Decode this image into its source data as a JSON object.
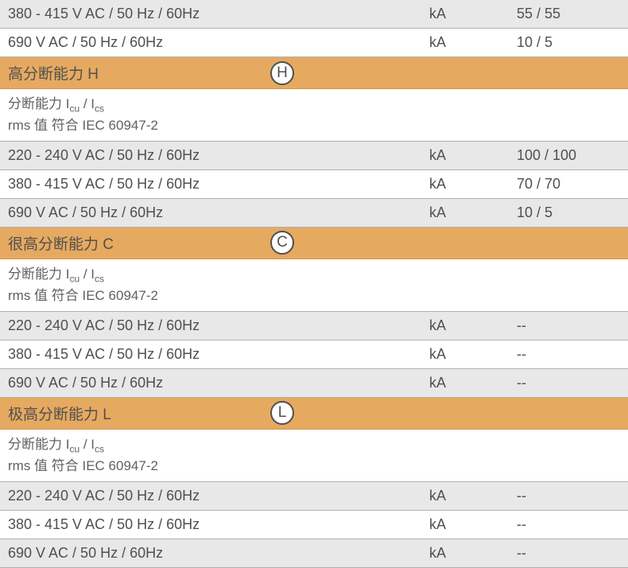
{
  "colors": {
    "header_bg": "#e6a960",
    "gray_bg": "#e8e8e8",
    "text": "#505050",
    "border": "#b0b0b0"
  },
  "rows": [
    {
      "type": "data",
      "gray": true,
      "c1": "380 - 415 V AC / 50 Hz / 60Hz",
      "c2": "kA",
      "c3": "55 / 55"
    },
    {
      "type": "data",
      "gray": false,
      "c1": "690 V AC / 50 Hz / 60Hz",
      "c2": "kA",
      "c3": "10 / 5"
    },
    {
      "type": "header",
      "title": "高分断能力 H",
      "badge": "H"
    },
    {
      "type": "subheader",
      "line1_pre": "分断能力 I",
      "line1_sub1": "cu",
      "line1_mid": " / I",
      "line1_sub2": "cs",
      "line2": "rms 值 符合 IEC 60947-2"
    },
    {
      "type": "data",
      "gray": true,
      "c1": "220 - 240 V AC / 50 Hz / 60Hz",
      "c2": "kA",
      "c3": "100 / 100"
    },
    {
      "type": "data",
      "gray": false,
      "c1": "380 - 415 V AC / 50 Hz / 60Hz",
      "c2": "kA",
      "c3": "70 / 70"
    },
    {
      "type": "data",
      "gray": true,
      "c1": "690 V AC / 50 Hz / 60Hz",
      "c2": "kA",
      "c3": "10 / 5"
    },
    {
      "type": "header",
      "title": "很高分断能力 C",
      "badge": "C"
    },
    {
      "type": "subheader",
      "line1_pre": "分断能力 I",
      "line1_sub1": "cu",
      "line1_mid": " / I",
      "line1_sub2": "cs",
      "line2": "rms 值 符合 IEC 60947-2"
    },
    {
      "type": "data",
      "gray": true,
      "c1": "220 - 240 V AC / 50 Hz / 60Hz",
      "c2": "kA",
      "c3": "--"
    },
    {
      "type": "data",
      "gray": false,
      "c1": "380 - 415 V AC / 50 Hz / 60Hz",
      "c2": "kA",
      "c3": "--"
    },
    {
      "type": "data",
      "gray": true,
      "c1": "690 V AC / 50 Hz / 60Hz",
      "c2": "kA",
      "c3": "--"
    },
    {
      "type": "header",
      "title": "极高分断能力 L",
      "badge": "L"
    },
    {
      "type": "subheader",
      "line1_pre": "分断能力 I",
      "line1_sub1": "cu",
      "line1_mid": " / I",
      "line1_sub2": "cs",
      "line2": "rms 值 符合 IEC 60947-2"
    },
    {
      "type": "data",
      "gray": true,
      "c1": "220 - 240 V AC / 50 Hz / 60Hz",
      "c2": "kA",
      "c3": "--"
    },
    {
      "type": "data",
      "gray": false,
      "c1": "380 - 415 V AC / 50 Hz / 60Hz",
      "c2": "kA",
      "c3": "--"
    },
    {
      "type": "data",
      "gray": true,
      "c1": "690 V AC / 50 Hz / 60Hz",
      "c2": "kA",
      "c3": "--"
    }
  ]
}
